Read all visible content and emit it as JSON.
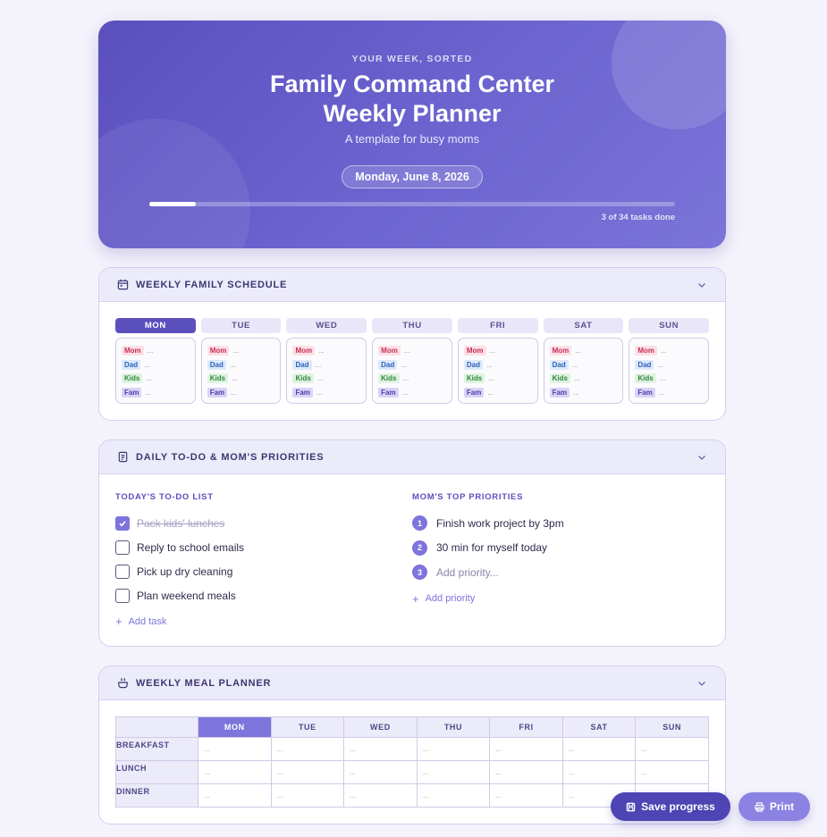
{
  "hero": {
    "kicker": "YOUR WEEK, SORTED",
    "title_line1": "Family Command Center",
    "title_line2": "Weekly Planner",
    "subtitle": "A template for busy moms",
    "date": "Monday, June 8, 2026",
    "progress_fraction": 0.0882,
    "progress_text": "3 of 34 tasks done"
  },
  "schedule": {
    "title": "WEEKLY FAMILY SCHEDULE",
    "icon": "calendar-icon",
    "days": [
      "MON",
      "TUE",
      "WED",
      "THU",
      "FRI",
      "SAT",
      "SUN"
    ],
    "active_day": "MON",
    "members": [
      "Mom",
      "Dad",
      "Kids",
      "Fam"
    ],
    "empty_value": "..."
  },
  "todo": {
    "title": "DAILY TO-DO & MOM'S PRIORITIES",
    "icon": "clipboard-icon",
    "list_title": "TODAY'S TO-DO LIST",
    "tasks": [
      {
        "label": "Pack kids' lunches",
        "done": true
      },
      {
        "label": "Reply to school emails",
        "done": false
      },
      {
        "label": "Pick up dry cleaning",
        "done": false
      },
      {
        "label": "Plan weekend meals",
        "done": false
      }
    ],
    "add_task": "Add task",
    "priorities_title": "MOM'S TOP PRIORITIES",
    "priorities": [
      {
        "num": "1",
        "text": "Finish work project by 3pm"
      },
      {
        "num": "2",
        "text": "30 min for myself today"
      },
      {
        "num": "3",
        "text": "Add priority..."
      }
    ],
    "add_priority": "Add priority"
  },
  "meals": {
    "title": "WEEKLY MEAL PLANNER",
    "icon": "cooking-pot-icon",
    "days": [
      "MON",
      "TUE",
      "WED",
      "THU",
      "FRI",
      "SAT",
      "SUN"
    ],
    "rows": [
      "BREAKFAST",
      "LUNCH",
      "DINNER"
    ],
    "empty_value": "..."
  },
  "actions": {
    "save": "Save progress",
    "print": "Print"
  },
  "colors": {
    "accent": "#5b4fbe",
    "accent_light": "#7d74dc",
    "background": "#f4f3fb"
  }
}
